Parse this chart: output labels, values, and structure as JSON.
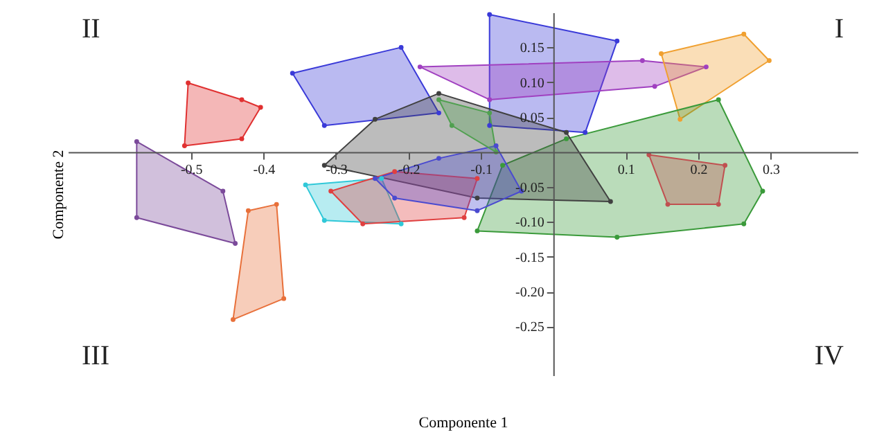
{
  "chart_data": {
    "type": "area",
    "xlabel": "Componente 1",
    "ylabel": "Componente 2",
    "annotations": [
      "II",
      "I",
      "III",
      "IV"
    ],
    "xlim": [
      -0.67,
      0.42
    ],
    "ylim": [
      -0.32,
      0.2
    ],
    "xticks": [
      -0.5,
      -0.4,
      -0.3,
      -0.2,
      -0.1,
      0.1,
      0.2,
      0.3
    ],
    "yticks": [
      {
        "value": 0.15,
        "label": "0.15"
      },
      {
        "value": 0.1,
        "label": "0.10"
      },
      {
        "value": 0.05,
        "label": "0.05"
      },
      {
        "value": -0.05,
        "label": "-0.05"
      },
      {
        "value": -0.1,
        "label": "-0.10"
      },
      {
        "value": -0.15,
        "label": "-0.15"
      },
      {
        "value": -0.2,
        "label": "-0.20"
      },
      {
        "value": -0.25,
        "label": "-0.25"
      }
    ],
    "grid": false,
    "marker": "circle",
    "line_style": "solid",
    "series": [
      {
        "color": "#e03030",
        "x": [
          -0.504,
          -0.43,
          -0.404,
          -0.43,
          -0.509
        ],
        "values": [
          0.099,
          0.075,
          0.064,
          0.019,
          0.009
        ]
      },
      {
        "color": "#7b4a9a",
        "x": [
          -0.575,
          -0.456,
          -0.439,
          -0.575
        ],
        "values": [
          0.015,
          -0.056,
          -0.131,
          -0.094
        ]
      },
      {
        "color": "#e8703a",
        "x": [
          -0.421,
          -0.382,
          -0.372,
          -0.442
        ],
        "values": [
          -0.084,
          -0.075,
          -0.21,
          -0.24
        ]
      },
      {
        "color": "#3a3ad8",
        "x": [
          -0.36,
          -0.21,
          -0.158,
          -0.316
        ],
        "values": [
          0.113,
          0.15,
          0.056,
          0.038
        ]
      },
      {
        "color": "#3a3ad8",
        "x": [
          -0.088,
          0.088,
          0.044,
          -0.088
        ],
        "values": [
          0.197,
          0.159,
          0.028,
          0.038
        ]
      },
      {
        "color": "#a040c0",
        "x": [
          -0.184,
          0.123,
          0.211,
          0.14,
          -0.088
        ],
        "values": [
          0.122,
          0.131,
          0.122,
          0.094,
          0.075
        ]
      },
      {
        "color": "#f0a030",
        "x": [
          0.149,
          0.263,
          0.298,
          0.175
        ],
        "values": [
          0.141,
          0.169,
          0.131,
          0.047
        ]
      },
      {
        "color": "#3a9a3a",
        "x": [
          -0.105,
          -0.07,
          0.018,
          0.228,
          0.289,
          0.263,
          0.088
        ],
        "values": [
          -0.113,
          -0.019,
          0.019,
          0.075,
          -0.056,
          -0.103,
          -0.122
        ]
      },
      {
        "color": "#404040",
        "x": [
          -0.316,
          -0.246,
          -0.158,
          0.018,
          0.079,
          -0.105
        ],
        "values": [
          -0.019,
          0.047,
          0.084,
          0.028,
          -0.071,
          -0.066
        ]
      },
      {
        "color": "#30c8d8",
        "x": [
          -0.342,
          -0.237,
          -0.21,
          -0.316
        ],
        "values": [
          -0.047,
          -0.038,
          -0.103,
          -0.098
        ]
      },
      {
        "color": "#e04040",
        "x": [
          -0.307,
          -0.219,
          -0.105,
          -0.123,
          -0.263
        ],
        "values": [
          -0.056,
          -0.028,
          -0.038,
          -0.094,
          -0.103
        ]
      },
      {
        "color": "#4a4ad0",
        "x": [
          -0.246,
          -0.158,
          -0.079,
          -0.044,
          -0.105,
          -0.219
        ],
        "values": [
          -0.038,
          -0.009,
          0.009,
          -0.056,
          -0.084,
          -0.066
        ]
      },
      {
        "color": "#c05050",
        "x": [
          0.132,
          0.237,
          0.228,
          0.158
        ],
        "values": [
          -0.004,
          -0.019,
          -0.075,
          -0.075
        ]
      },
      {
        "color": "#50a050",
        "x": [
          -0.158,
          -0.088,
          -0.079,
          -0.14
        ],
        "values": [
          0.075,
          0.056,
          0.0,
          0.038
        ]
      }
    ]
  }
}
